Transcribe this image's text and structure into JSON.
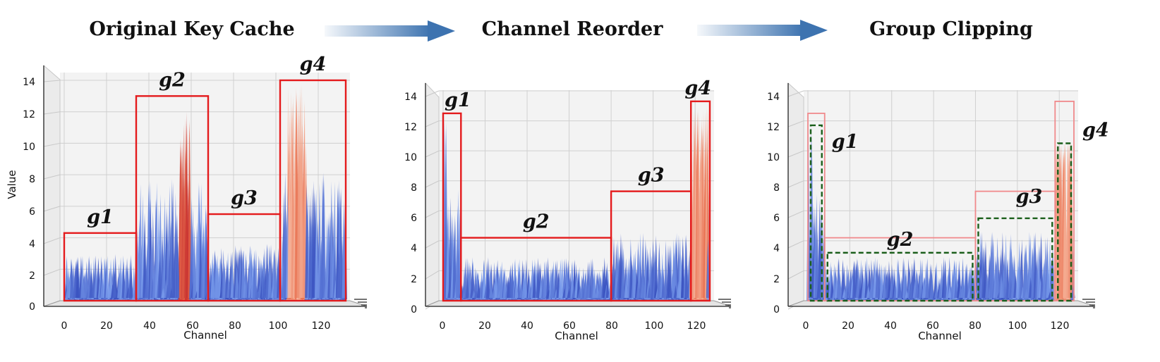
{
  "titles": {
    "original": "Original Key Cache",
    "reorder": "Channel Reorder",
    "clipping": "Group Clipping"
  },
  "colors": {
    "arrow": "#3d73b0",
    "group_box": "#e41a1c",
    "group_box_faded": "#f08a8c",
    "clip_box": "#1a5e1a",
    "low": "#3a52c0",
    "mid": "#7da0ee",
    "high": "#e87050"
  },
  "axes": {
    "xlabel": "Channel",
    "ylabel": "Value",
    "x_ticks": [
      "0",
      "20",
      "40",
      "60",
      "80",
      "100",
      "120"
    ],
    "y_ticks": [
      "0",
      "2",
      "4",
      "6",
      "8",
      "10",
      "12",
      "14"
    ]
  },
  "panels": [
    {
      "id": "original",
      "show_ylabel": true,
      "groups": [
        {
          "name": "g1",
          "x0": 0,
          "x1": 34,
          "max": 4.3
        },
        {
          "name": "g2",
          "x0": 34,
          "x1": 68,
          "max": 13.0
        },
        {
          "name": "g3",
          "x0": 68,
          "x1": 102,
          "max": 5.5
        },
        {
          "name": "g4",
          "x0": 102,
          "x1": 133,
          "max": 14.0
        }
      ]
    },
    {
      "id": "reorder",
      "show_ylabel": false,
      "groups": [
        {
          "name": "g1",
          "x0": 0,
          "x1": 8.5,
          "max": 12.5
        },
        {
          "name": "g2",
          "x0": 8.5,
          "x1": 80,
          "max": 4.2
        },
        {
          "name": "g3",
          "x0": 80,
          "x1": 118,
          "max": 7.3
        },
        {
          "name": "g4",
          "x0": 118,
          "x1": 127,
          "max": 13.3
        }
      ]
    },
    {
      "id": "clipping",
      "show_ylabel": false,
      "groups": [
        {
          "name": "g1",
          "x0": 0,
          "x1": 8,
          "max": 12.5,
          "clip": 11.7
        },
        {
          "name": "g2",
          "x0": 8,
          "x1": 80,
          "max": 4.2,
          "clip": 3.2
        },
        {
          "name": "g3",
          "x0": 80,
          "x1": 118,
          "max": 7.3,
          "clip": 5.5
        },
        {
          "name": "g4",
          "x0": 118,
          "x1": 127,
          "max": 13.3,
          "clip": 10.5
        }
      ]
    }
  ]
}
